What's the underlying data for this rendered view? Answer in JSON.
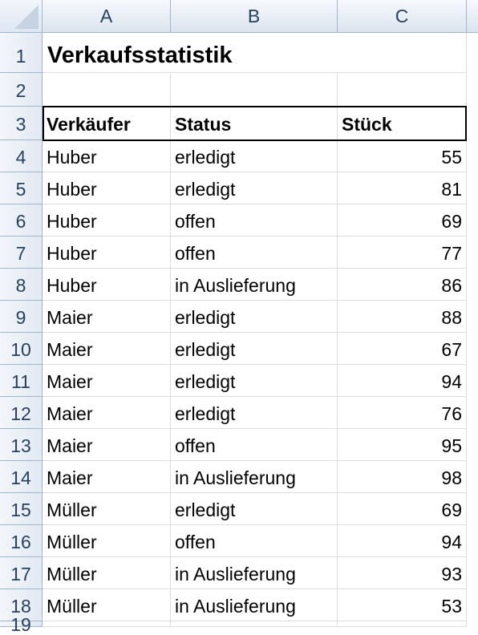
{
  "columns": [
    "A",
    "B",
    "C"
  ],
  "title": "Verkaufsstatistik",
  "table_headers": {
    "seller": "Verkäufer",
    "status": "Status",
    "pieces": "Stück"
  },
  "rows": [
    {
      "seller": "Huber",
      "status": "erledigt",
      "pieces": "55"
    },
    {
      "seller": "Huber",
      "status": "erledigt",
      "pieces": "81"
    },
    {
      "seller": "Huber",
      "status": "offen",
      "pieces": "69"
    },
    {
      "seller": "Huber",
      "status": "offen",
      "pieces": "77"
    },
    {
      "seller": "Huber",
      "status": "in Auslieferung",
      "pieces": "86"
    },
    {
      "seller": "Maier",
      "status": "erledigt",
      "pieces": "88"
    },
    {
      "seller": "Maier",
      "status": "erledigt",
      "pieces": "67"
    },
    {
      "seller": "Maier",
      "status": "erledigt",
      "pieces": "94"
    },
    {
      "seller": "Maier",
      "status": "erledigt",
      "pieces": "76"
    },
    {
      "seller": "Maier",
      "status": "offen",
      "pieces": "95"
    },
    {
      "seller": "Maier",
      "status": "in Auslieferung",
      "pieces": "98"
    },
    {
      "seller": "Müller",
      "status": "erledigt",
      "pieces": "69"
    },
    {
      "seller": "Müller",
      "status": "offen",
      "pieces": "94"
    },
    {
      "seller": "Müller",
      "status": "in Auslieferung",
      "pieces": "93"
    },
    {
      "seller": "Müller",
      "status": "in Auslieferung",
      "pieces": "53"
    }
  ],
  "row_numbers": [
    "1",
    "2",
    "3",
    "4",
    "5",
    "6",
    "7",
    "8",
    "9",
    "10",
    "11",
    "12",
    "13",
    "14",
    "15",
    "16",
    "17",
    "18",
    "19"
  ],
  "colors": {
    "header_bg": "#dbe4ef",
    "header_border": "#9eb6ce",
    "grid": "#d9dde3"
  }
}
